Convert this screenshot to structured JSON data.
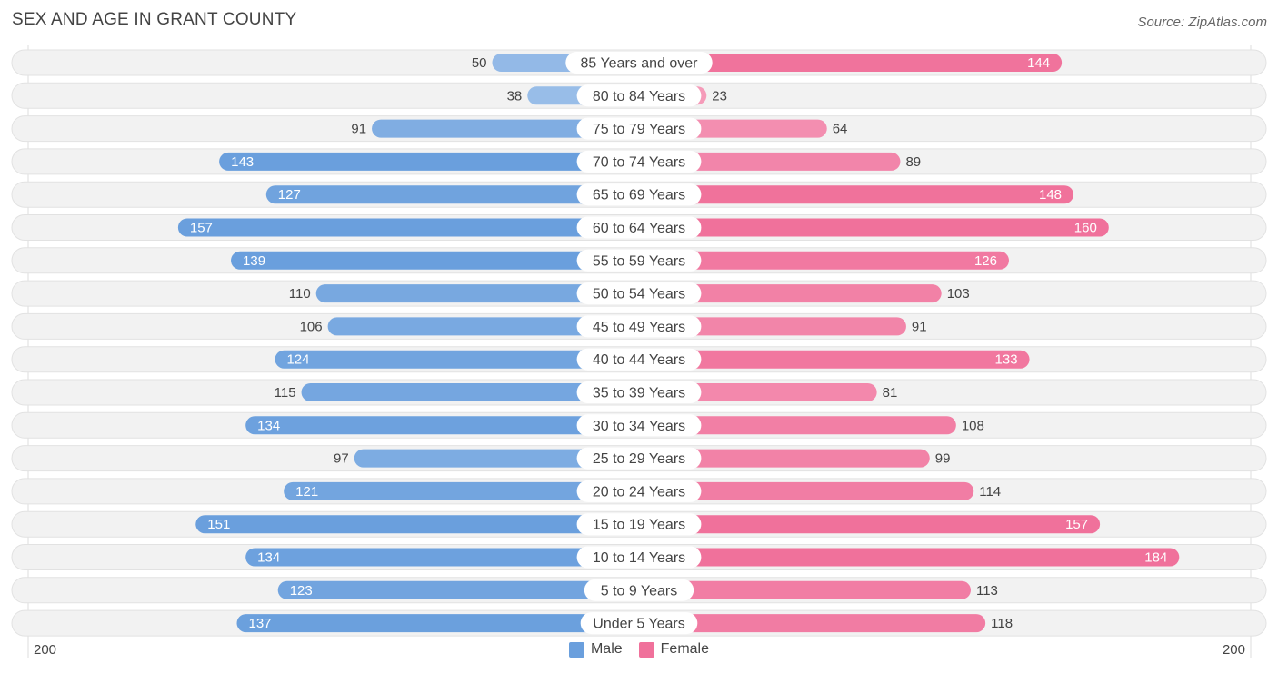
{
  "header": {
    "title": "SEX AND AGE IN GRANT COUNTY",
    "source": "Source: ZipAtlas.com"
  },
  "axis": {
    "left_label": "200",
    "right_label": "200"
  },
  "legend": {
    "male_label": "Male",
    "female_label": "Female"
  },
  "colors": {
    "male": "#6a9fdd",
    "female": "#f0719b",
    "male_light": "#a9c8ec",
    "female_light": "#f6a3bf",
    "row_bg": "#efefef"
  },
  "chart_data": {
    "type": "bar",
    "orientation": "horizontal-diverging",
    "title": "SEX AND AGE IN GRANT COUNTY",
    "xlim": [
      -200,
      200
    ],
    "categories": [
      "85 Years and over",
      "80 to 84 Years",
      "75 to 79 Years",
      "70 to 74 Years",
      "65 to 69 Years",
      "60 to 64 Years",
      "55 to 59 Years",
      "50 to 54 Years",
      "45 to 49 Years",
      "40 to 44 Years",
      "35 to 39 Years",
      "30 to 34 Years",
      "25 to 29 Years",
      "20 to 24 Years",
      "15 to 19 Years",
      "10 to 14 Years",
      "5 to 9 Years",
      "Under 5 Years"
    ],
    "series": [
      {
        "name": "Male",
        "values": [
          50,
          38,
          91,
          143,
          127,
          157,
          139,
          110,
          106,
          124,
          115,
          134,
          97,
          121,
          151,
          134,
          123,
          137
        ]
      },
      {
        "name": "Female",
        "values": [
          144,
          23,
          64,
          89,
          148,
          160,
          126,
          103,
          91,
          133,
          81,
          108,
          99,
          114,
          157,
          184,
          113,
          118
        ]
      }
    ]
  }
}
